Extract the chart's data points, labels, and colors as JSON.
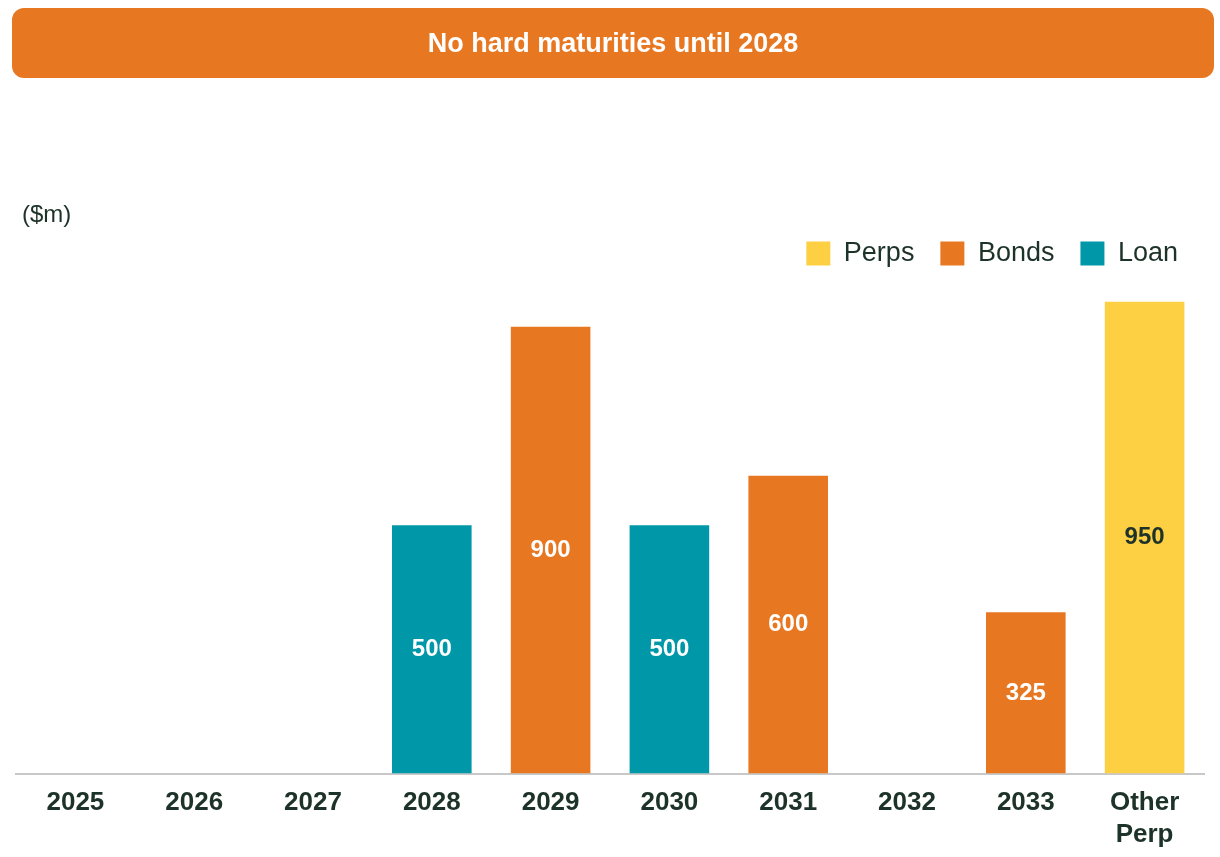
{
  "chart_data": {
    "type": "bar",
    "title": "No hard maturities until 2028",
    "ylabel": "($m)",
    "stacked": true,
    "relative": false,
    "categories": [
      "2025",
      "2026",
      "2027",
      "2028",
      "2029",
      "2030",
      "2031",
      "2032",
      "2033",
      "Other Perp"
    ],
    "series": [
      {
        "name": "Perps",
        "color": "#fdd043",
        "values": [
          null,
          null,
          null,
          null,
          null,
          null,
          null,
          null,
          null,
          950
        ]
      },
      {
        "name": "Bonds",
        "color": "#e87722",
        "values": [
          null,
          null,
          null,
          null,
          900,
          null,
          600,
          null,
          325,
          null
        ]
      },
      {
        "name": "Loan",
        "color": "#0098a8",
        "values": [
          null,
          null,
          null,
          500,
          null,
          500,
          null,
          null,
          null,
          null
        ]
      }
    ],
    "data_labels": true,
    "legend": "top right",
    "grid": false
  }
}
